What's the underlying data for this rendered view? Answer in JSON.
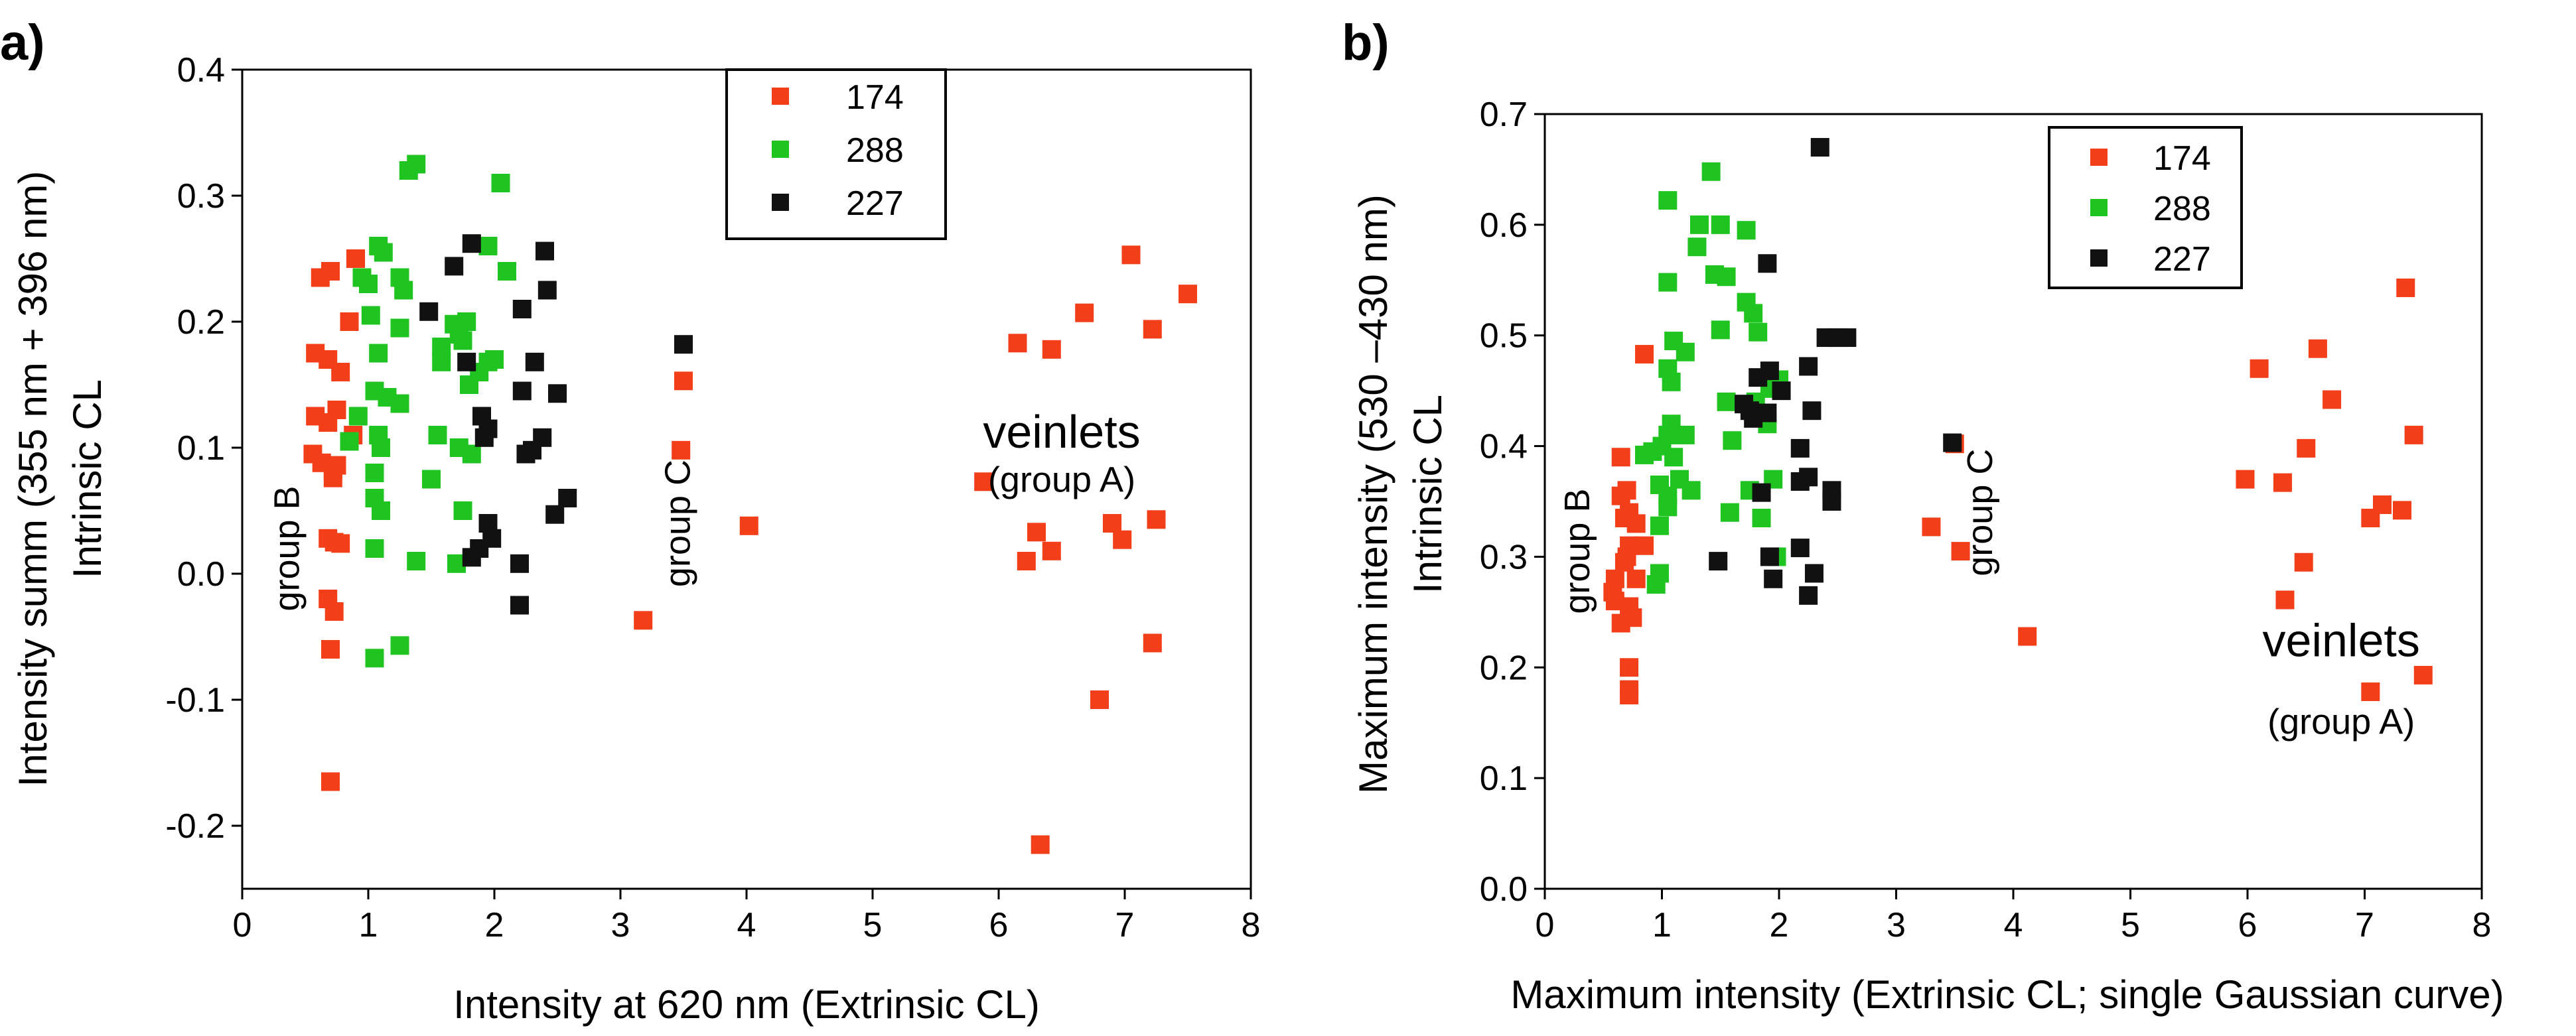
{
  "chart_data": [
    {
      "type": "scatter",
      "panel_label": "a)",
      "xlabel": "Intensity at 620 nm (Extrinsic CL)",
      "ylabel_line1": "Intensity summ (355 nm + 396 nm)",
      "ylabel_line2": "Intrinsic CL",
      "xlim": [
        0,
        8
      ],
      "ylim": [
        -0.25,
        0.4
      ],
      "xticks": [
        0,
        1,
        2,
        3,
        4,
        5,
        6,
        7,
        8
      ],
      "xtick_labels": [
        "0",
        "1",
        "2",
        "3",
        "4",
        "5",
        "6",
        "7",
        "8"
      ],
      "yticks": [
        -0.2,
        -0.1,
        0.0,
        0.1,
        0.2,
        0.3,
        0.4
      ],
      "ytick_labels": [
        "-0.2",
        "-0.1",
        "0.0",
        "0.1",
        "0.2",
        "0.3",
        "0.4"
      ],
      "legend": {
        "placement": "top-center"
      },
      "annotations": [
        {
          "text": "group B",
          "x": 0.45,
          "y": 0.02,
          "rotation": -90,
          "style": "normal"
        },
        {
          "text": "group C",
          "x": 3.55,
          "y": 0.04,
          "rotation": -90,
          "style": "normal"
        },
        {
          "text": "veinlets",
          "x": 6.5,
          "y": 0.1,
          "rotation": 0,
          "style": "big"
        },
        {
          "text": "(group A)",
          "x": 6.5,
          "y": 0.065,
          "rotation": 0,
          "style": "normal"
        }
      ],
      "series": [
        {
          "name": "174",
          "color": "#f23f1a",
          "points": [
            [
              0.62,
              0.235
            ],
            [
              0.7,
              0.24
            ],
            [
              0.9,
              0.25
            ],
            [
              0.85,
              0.2
            ],
            [
              0.58,
              0.175
            ],
            [
              0.68,
              0.17
            ],
            [
              0.78,
              0.16
            ],
            [
              0.75,
              0.13
            ],
            [
              0.58,
              0.125
            ],
            [
              0.68,
              0.12
            ],
            [
              0.88,
              0.11
            ],
            [
              0.56,
              0.095
            ],
            [
              0.63,
              0.088
            ],
            [
              0.72,
              0.082
            ],
            [
              0.75,
              0.086
            ],
            [
              0.72,
              0.076
            ],
            [
              0.68,
              0.028
            ],
            [
              0.73,
              0.025
            ],
            [
              0.78,
              0.024
            ],
            [
              0.68,
              -0.02
            ],
            [
              0.73,
              -0.03
            ],
            [
              0.7,
              -0.06
            ],
            [
              0.7,
              -0.165
            ],
            [
              3.18,
              -0.037
            ],
            [
              3.5,
              0.153
            ],
            [
              3.48,
              0.098
            ],
            [
              4.02,
              0.038
            ],
            [
              5.88,
              0.073
            ],
            [
              6.15,
              0.183
            ],
            [
              6.42,
              0.178
            ],
            [
              6.68,
              0.207
            ],
            [
              7.05,
              0.253
            ],
            [
              7.5,
              0.222
            ],
            [
              7.22,
              0.194
            ],
            [
              6.3,
              0.033
            ],
            [
              6.22,
              0.01
            ],
            [
              6.42,
              0.018
            ],
            [
              6.9,
              0.04
            ],
            [
              6.98,
              0.027
            ],
            [
              7.25,
              0.043
            ],
            [
              7.22,
              -0.055
            ],
            [
              6.8,
              -0.1
            ],
            [
              6.33,
              -0.215
            ]
          ]
        },
        {
          "name": "288",
          "color": "#20c420",
          "points": [
            [
              1.32,
              0.32
            ],
            [
              1.38,
              0.325
            ],
            [
              2.05,
              0.31
            ],
            [
              1.12,
              0.255
            ],
            [
              1.08,
              0.26
            ],
            [
              1.95,
              0.26
            ],
            [
              2.1,
              0.24
            ],
            [
              0.95,
              0.235
            ],
            [
              1.0,
              0.23
            ],
            [
              1.25,
              0.235
            ],
            [
              1.28,
              0.225
            ],
            [
              1.68,
              0.198
            ],
            [
              1.72,
              0.19
            ],
            [
              1.78,
              0.2
            ],
            [
              1.02,
              0.205
            ],
            [
              1.25,
              0.195
            ],
            [
              1.58,
              0.18
            ],
            [
              1.75,
              0.185
            ],
            [
              2.0,
              0.17
            ],
            [
              1.95,
              0.168
            ],
            [
              1.08,
              0.175
            ],
            [
              1.58,
              0.168
            ],
            [
              1.88,
              0.16
            ],
            [
              1.8,
              0.15
            ],
            [
              1.05,
              0.145
            ],
            [
              1.15,
              0.14
            ],
            [
              1.25,
              0.135
            ],
            [
              0.92,
              0.125
            ],
            [
              1.08,
              0.11
            ],
            [
              1.1,
              0.1
            ],
            [
              0.85,
              0.105
            ],
            [
              1.55,
              0.11
            ],
            [
              1.72,
              0.1
            ],
            [
              1.82,
              0.095
            ],
            [
              1.05,
              0.08
            ],
            [
              1.05,
              0.06
            ],
            [
              1.1,
              0.05
            ],
            [
              1.5,
              0.075
            ],
            [
              1.75,
              0.05
            ],
            [
              1.7,
              0.008
            ],
            [
              1.38,
              0.01
            ],
            [
              1.05,
              0.02
            ],
            [
              1.25,
              -0.057
            ],
            [
              1.05,
              -0.067
            ]
          ]
        },
        {
          "name": "227",
          "color": "#111111",
          "points": [
            [
              1.82,
              0.262
            ],
            [
              2.4,
              0.256
            ],
            [
              1.68,
              0.244
            ],
            [
              2.42,
              0.225
            ],
            [
              1.48,
              0.208
            ],
            [
              2.22,
              0.21
            ],
            [
              1.78,
              0.168
            ],
            [
              2.32,
              0.168
            ],
            [
              2.22,
              0.145
            ],
            [
              2.5,
              0.143
            ],
            [
              1.9,
              0.125
            ],
            [
              1.95,
              0.115
            ],
            [
              1.92,
              0.108
            ],
            [
              2.38,
              0.108
            ],
            [
              2.3,
              0.098
            ],
            [
              2.25,
              0.095
            ],
            [
              2.58,
              0.06
            ],
            [
              2.48,
              0.047
            ],
            [
              1.95,
              0.04
            ],
            [
              1.98,
              0.028
            ],
            [
              1.88,
              0.02
            ],
            [
              1.82,
              0.013
            ],
            [
              2.2,
              0.008
            ],
            [
              2.2,
              -0.025
            ],
            [
              3.5,
              0.182
            ]
          ]
        }
      ]
    },
    {
      "type": "scatter",
      "panel_label": "b)",
      "xlabel": "Maximum intensity (Extrinsic CL; single Gaussian curve)",
      "ylabel_line1": "Maximum intensity (530 –430 nm)",
      "ylabel_line2": "Intrinsic CL",
      "xlim": [
        0,
        8
      ],
      "ylim": [
        0,
        0.7
      ],
      "xticks": [
        0,
        1,
        2,
        3,
        4,
        5,
        6,
        7,
        8
      ],
      "xtick_labels": [
        "0",
        "1",
        "2",
        "3",
        "4",
        "5",
        "6",
        "7",
        "8"
      ],
      "yticks": [
        0.0,
        0.1,
        0.2,
        0.3,
        0.4,
        0.5,
        0.6,
        0.7
      ],
      "ytick_labels": [
        "0.0",
        "0.1",
        "0.2",
        "0.3",
        "0.4",
        "0.5",
        "0.6",
        "0.7"
      ],
      "legend": {
        "placement": "top-right"
      },
      "annotations": [
        {
          "text": "group B",
          "x": 0.38,
          "y": 0.305,
          "rotation": -90,
          "style": "normal"
        },
        {
          "text": "group C",
          "x": 3.82,
          "y": 0.34,
          "rotation": -90,
          "style": "normal"
        },
        {
          "text": "veinlets",
          "x": 6.8,
          "y": 0.21,
          "rotation": 0,
          "style": "big"
        },
        {
          "text": "(group A)",
          "x": 6.8,
          "y": 0.14,
          "rotation": 0,
          "style": "normal"
        }
      ],
      "series": [
        {
          "name": "174",
          "color": "#f23f1a",
          "points": [
            [
              0.85,
              0.483
            ],
            [
              0.65,
              0.39
            ],
            [
              0.7,
              0.36
            ],
            [
              0.65,
              0.355
            ],
            [
              0.72,
              0.34
            ],
            [
              0.68,
              0.335
            ],
            [
              0.78,
              0.33
            ],
            [
              0.72,
              0.31
            ],
            [
              0.85,
              0.31
            ],
            [
              0.7,
              0.3
            ],
            [
              0.68,
              0.295
            ],
            [
              0.6,
              0.28
            ],
            [
              0.78,
              0.28
            ],
            [
              0.58,
              0.268
            ],
            [
              0.6,
              0.26
            ],
            [
              0.72,
              0.255
            ],
            [
              0.65,
              0.24
            ],
            [
              0.75,
              0.245
            ],
            [
              0.72,
              0.2
            ],
            [
              0.72,
              0.18
            ],
            [
              0.72,
              0.175
            ],
            [
              3.3,
              0.327
            ],
            [
              3.5,
              0.402
            ],
            [
              3.55,
              0.305
            ],
            [
              4.12,
              0.228
            ],
            [
              6.1,
              0.47
            ],
            [
              6.6,
              0.488
            ],
            [
              6.72,
              0.442
            ],
            [
              7.35,
              0.543
            ],
            [
              6.5,
              0.398
            ],
            [
              7.42,
              0.41
            ],
            [
              5.98,
              0.37
            ],
            [
              6.3,
              0.367
            ],
            [
              7.15,
              0.347
            ],
            [
              7.32,
              0.342
            ],
            [
              7.05,
              0.335
            ],
            [
              6.48,
              0.295
            ],
            [
              6.32,
              0.261
            ],
            [
              7.05,
              0.178
            ],
            [
              7.5,
              0.193
            ]
          ]
        },
        {
          "name": "288",
          "color": "#20c420",
          "points": [
            [
              1.42,
              0.648
            ],
            [
              1.05,
              0.622
            ],
            [
              1.72,
              0.595
            ],
            [
              1.32,
              0.6
            ],
            [
              1.5,
              0.6
            ],
            [
              1.3,
              0.58
            ],
            [
              1.45,
              0.555
            ],
            [
              1.55,
              0.553
            ],
            [
              1.05,
              0.548
            ],
            [
              1.72,
              0.53
            ],
            [
              1.78,
              0.52
            ],
            [
              1.5,
              0.505
            ],
            [
              1.82,
              0.503
            ],
            [
              1.1,
              0.495
            ],
            [
              1.2,
              0.485
            ],
            [
              1.05,
              0.47
            ],
            [
              1.08,
              0.458
            ],
            [
              2.0,
              0.46
            ],
            [
              1.92,
              0.452
            ],
            [
              1.55,
              0.44
            ],
            [
              1.8,
              0.44
            ],
            [
              1.9,
              0.42
            ],
            [
              1.08,
              0.42
            ],
            [
              1.05,
              0.41
            ],
            [
              1.2,
              0.41
            ],
            [
              1.6,
              0.405
            ],
            [
              1.0,
              0.4
            ],
            [
              0.92,
              0.395
            ],
            [
              0.85,
              0.392
            ],
            [
              1.1,
              0.39
            ],
            [
              1.15,
              0.37
            ],
            [
              1.95,
              0.37
            ],
            [
              0.98,
              0.365
            ],
            [
              1.25,
              0.36
            ],
            [
              1.75,
              0.36
            ],
            [
              1.05,
              0.355
            ],
            [
              1.05,
              0.345
            ],
            [
              1.58,
              0.34
            ],
            [
              1.85,
              0.335
            ],
            [
              0.98,
              0.328
            ],
            [
              0.98,
              0.285
            ],
            [
              0.95,
              0.275
            ],
            [
              1.98,
              0.3
            ]
          ]
        },
        {
          "name": "227",
          "color": "#111111",
          "points": [
            [
              2.35,
              0.67
            ],
            [
              1.9,
              0.565
            ],
            [
              2.4,
              0.498
            ],
            [
              2.5,
              0.498
            ],
            [
              2.58,
              0.498
            ],
            [
              2.25,
              0.472
            ],
            [
              1.92,
              0.468
            ],
            [
              1.82,
              0.462
            ],
            [
              2.02,
              0.45
            ],
            [
              1.7,
              0.438
            ],
            [
              1.75,
              0.432
            ],
            [
              1.78,
              0.425
            ],
            [
              2.28,
              0.432
            ],
            [
              1.9,
              0.43
            ],
            [
              2.18,
              0.398
            ],
            [
              3.48,
              0.403
            ],
            [
              2.25,
              0.372
            ],
            [
              2.18,
              0.368
            ],
            [
              1.85,
              0.358
            ],
            [
              2.45,
              0.36
            ],
            [
              2.45,
              0.35
            ],
            [
              2.18,
              0.308
            ],
            [
              1.92,
              0.3
            ],
            [
              1.48,
              0.296
            ],
            [
              2.3,
              0.285
            ],
            [
              1.95,
              0.28
            ],
            [
              2.25,
              0.265
            ]
          ]
        }
      ]
    }
  ]
}
